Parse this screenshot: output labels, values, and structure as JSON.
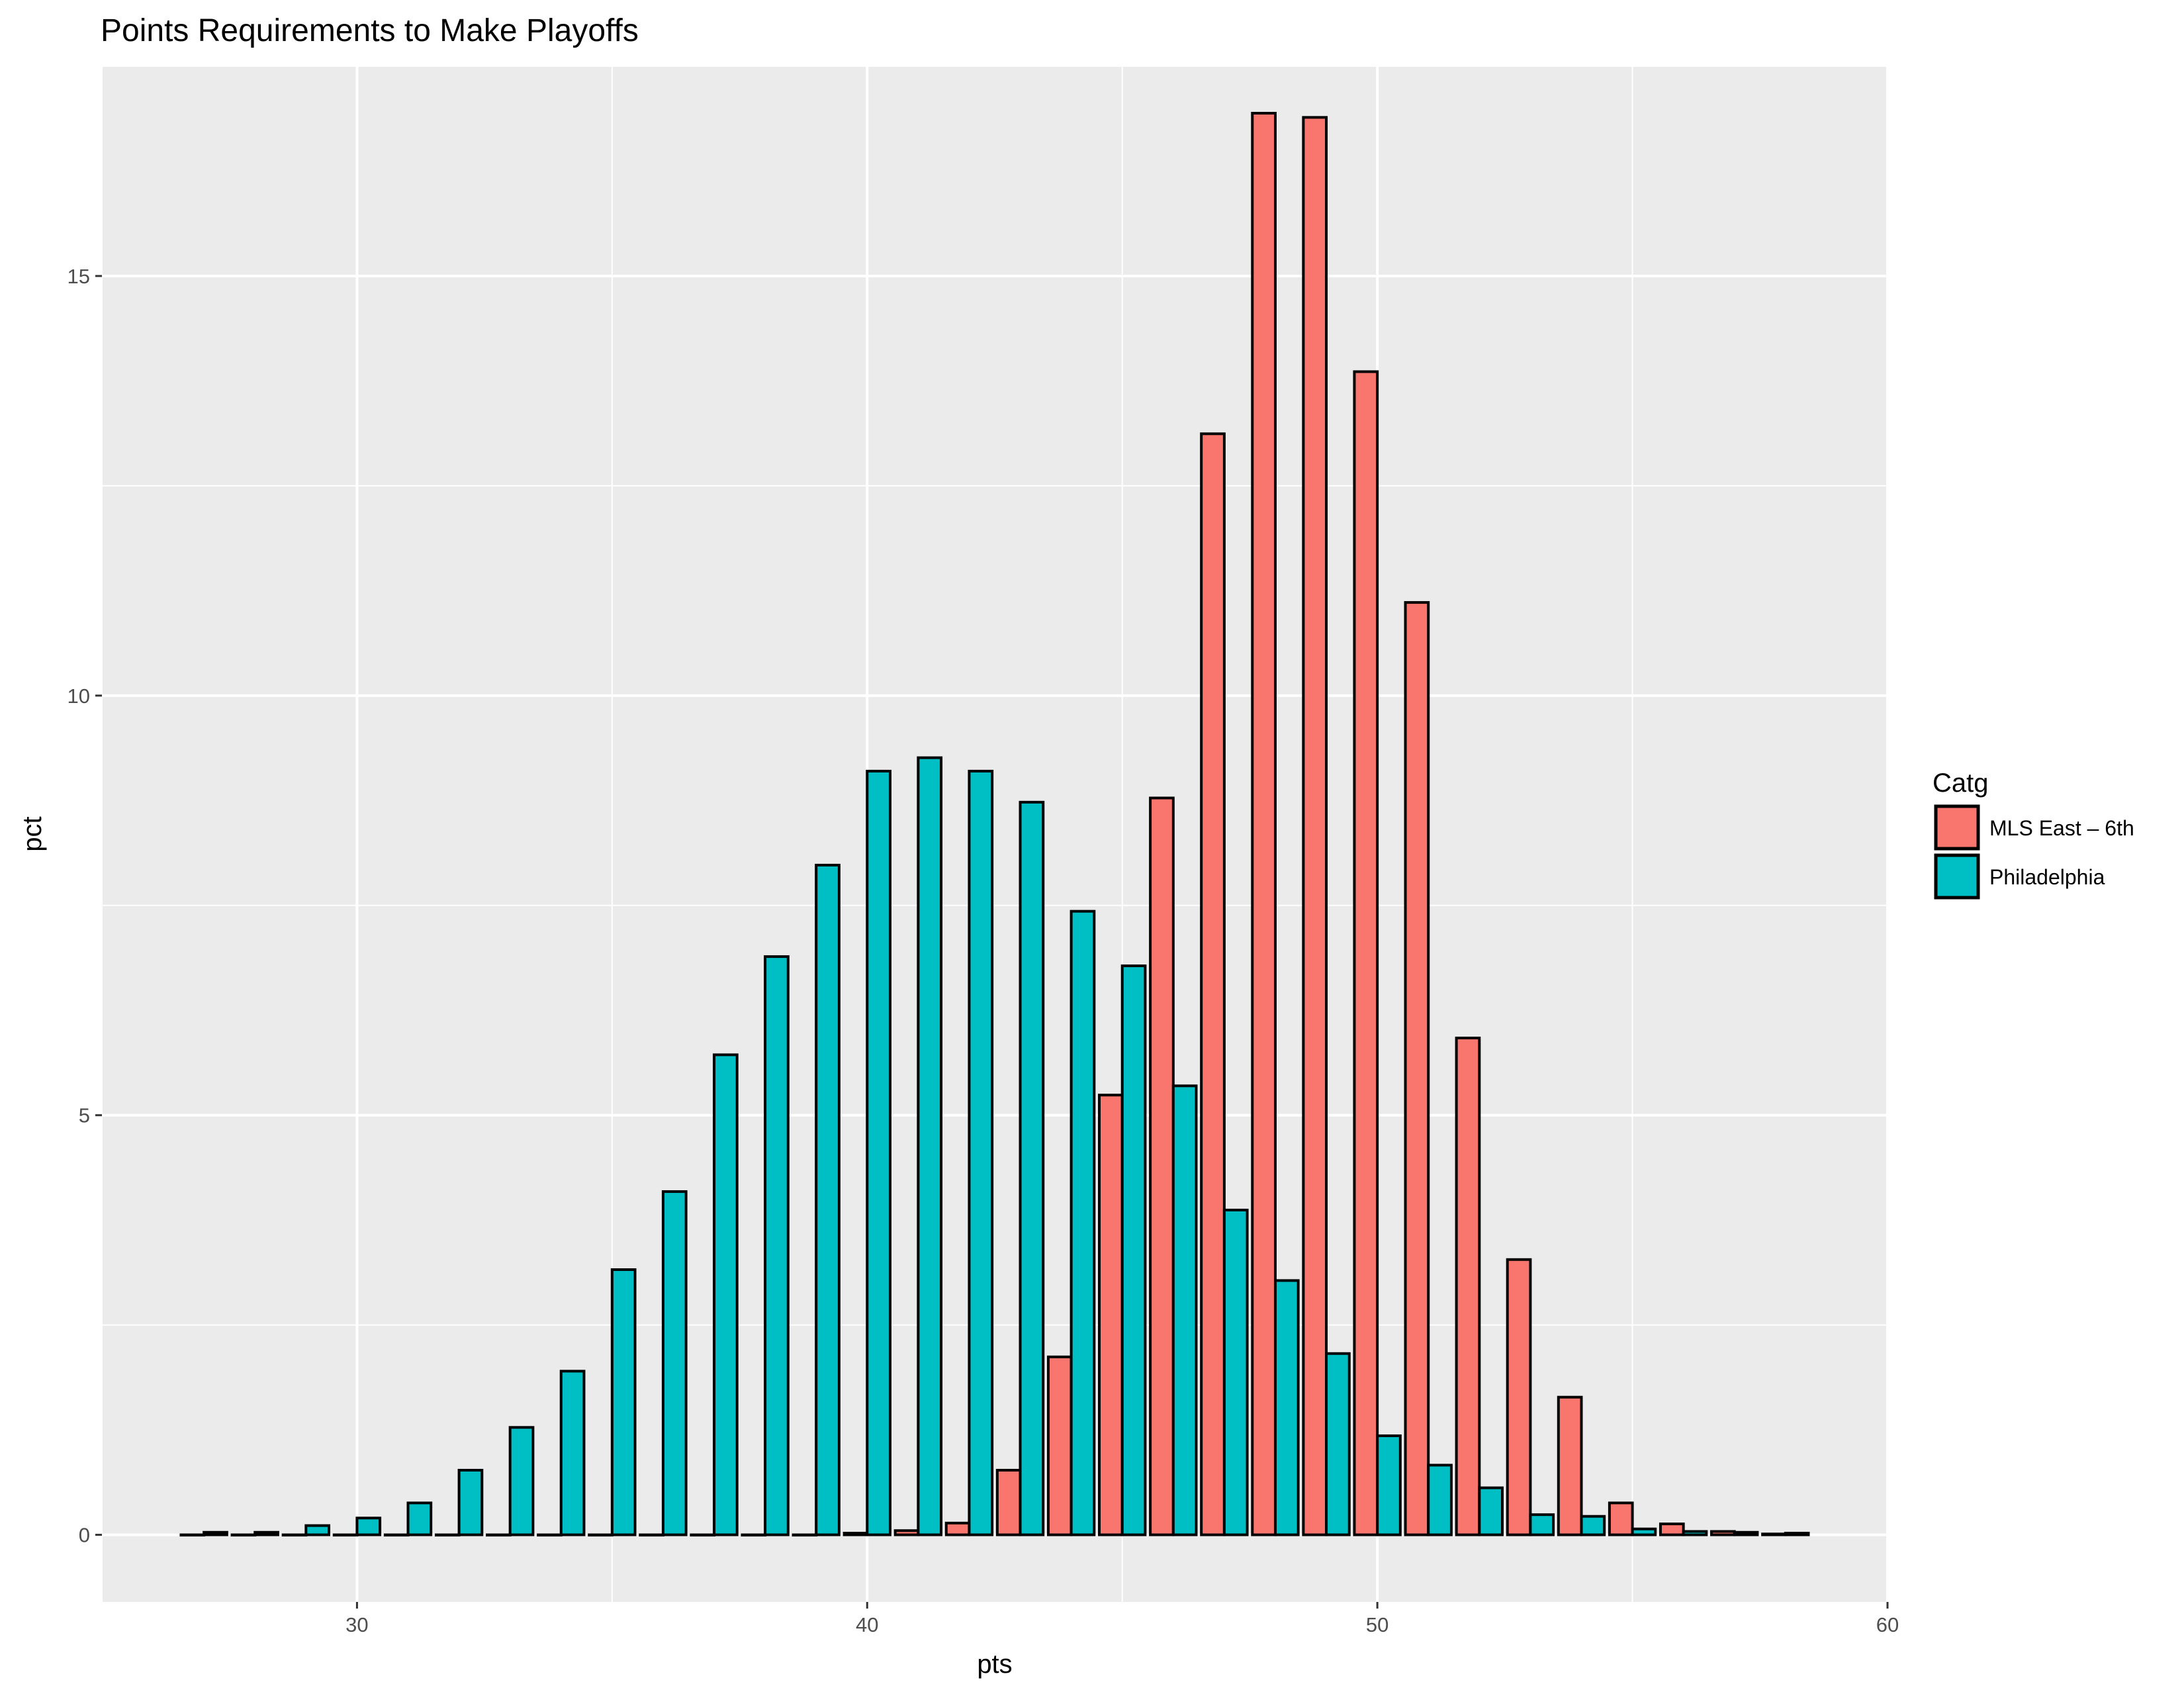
{
  "chart_data": {
    "type": "bar",
    "title": "Points Requirements to Make Playoffs",
    "xlabel": "pts",
    "ylabel": "pct",
    "xlim": [
      25,
      60
    ],
    "ylim": [
      -0.8,
      17.5
    ],
    "x_ticks": [
      30,
      40,
      50,
      60
    ],
    "y_ticks": [
      0,
      5,
      10,
      15
    ],
    "grid": true,
    "legend": {
      "title": "Catg",
      "placement": "right"
    },
    "x": [
      27,
      28,
      29,
      30,
      31,
      32,
      33,
      34,
      35,
      36,
      37,
      38,
      39,
      40,
      41,
      42,
      43,
      44,
      45,
      46,
      47,
      48,
      49,
      50,
      51,
      52,
      53,
      54,
      55,
      56,
      57,
      58
    ],
    "series": [
      {
        "name": "MLS East – 6th",
        "color": "#f8766d",
        "values": [
          0,
          0,
          0,
          0,
          0,
          0,
          0,
          0,
          0,
          0,
          0,
          0,
          0,
          0.02,
          0.05,
          0.14,
          0.77,
          2.12,
          5.24,
          8.78,
          13.12,
          16.94,
          16.89,
          13.86,
          11.11,
          5.92,
          3.28,
          1.64,
          0.38,
          0.13,
          0.04,
          0.01
        ]
      },
      {
        "name": "Philadelphia",
        "color": "#00bfc4",
        "values": [
          0.03,
          0.03,
          0.11,
          0.2,
          0.38,
          0.77,
          1.28,
          1.95,
          3.16,
          4.09,
          5.72,
          6.89,
          7.98,
          9.1,
          9.26,
          9.1,
          8.73,
          7.43,
          6.78,
          5.35,
          3.87,
          3.03,
          2.16,
          1.18,
          0.83,
          0.56,
          0.24,
          0.22,
          0.07,
          0.04,
          0.03,
          0.02
        ]
      }
    ]
  }
}
